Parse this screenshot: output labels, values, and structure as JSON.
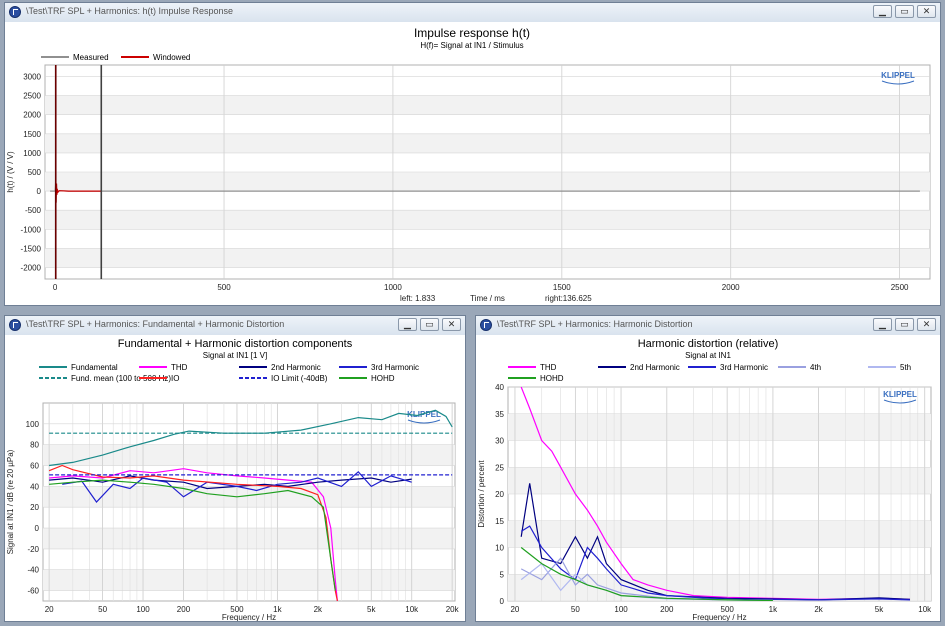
{
  "windows": {
    "top": {
      "title": "\\Test\\TRF SPL + Harmonics: h(t) Impulse Response"
    },
    "left": {
      "title": "\\Test\\TRF SPL + Harmonics: Fundamental + Harmonic Distortion"
    },
    "right": {
      "title": "\\Test\\TRF SPL + Harmonics: Harmonic Distortion"
    }
  },
  "logo_text": "KLIPPEL",
  "colors": {
    "measured": "#909090",
    "windowed": "#cc0000",
    "fundamental": "#1a8a8a",
    "thd": "#ff00ff",
    "h2": "#000080",
    "h3": "#2020d0",
    "im": "#ff2020",
    "hohd": "#20a020",
    "h4": "#9aa0e0",
    "h5": "#b0b8f0"
  },
  "chart_data": [
    {
      "type": "line",
      "title": "Impulse response h(t)",
      "subtitle": "H(f)= Signal at IN1 / Stimulus",
      "xlabel": "Time / ms",
      "ylabel": "h(t) / (V / V)",
      "xlim": [
        -30,
        2590
      ],
      "ylim": [
        -2300,
        3300
      ],
      "xticks": [
        0,
        500,
        1000,
        1500,
        2000,
        2500
      ],
      "yticks": [
        -2000,
        -1500,
        -1000,
        -500,
        0,
        500,
        1000,
        1500,
        2000,
        2500,
        3000
      ],
      "legend": [
        {
          "name": "Measured",
          "color": "#909090"
        },
        {
          "name": "Windowed",
          "color": "#cc0000"
        }
      ],
      "annotations": {
        "left": "left: 1.833",
        "right": "right:136.625"
      },
      "cursors_ms": [
        1.833,
        136.625
      ],
      "series": [
        {
          "name": "Measured",
          "points": [
            [
              -15,
              0
            ],
            [
              0,
              0
            ],
            [
              1,
              150
            ],
            [
              2,
              400
            ],
            [
              3,
              -300
            ],
            [
              4,
              200
            ],
            [
              5,
              -100
            ],
            [
              6,
              60
            ],
            [
              8,
              -30
            ],
            [
              12,
              10
            ],
            [
              40,
              0
            ],
            [
              2560,
              0
            ]
          ]
        },
        {
          "name": "Windowed",
          "points": [
            [
              1.833,
              0
            ],
            [
              2,
              400
            ],
            [
              3,
              -300
            ],
            [
              4,
              200
            ],
            [
              5,
              -100
            ],
            [
              6,
              60
            ],
            [
              8,
              -30
            ],
            [
              12,
              10
            ],
            [
              40,
              0
            ],
            [
              136.625,
              0
            ]
          ]
        }
      ]
    },
    {
      "type": "line",
      "title": "Fundamental + Harmonic distortion components",
      "subtitle": "Signal at IN1 [1 V]",
      "xlabel": "Frequency / Hz",
      "ylabel": "Signal at IN1 / dB (re 20 µPa)",
      "xscale": "log",
      "xlim": [
        18,
        21000
      ],
      "ylim": [
        -70,
        120
      ],
      "xticks": [
        {
          "v": 20,
          "l": "20"
        },
        {
          "v": 50,
          "l": "50"
        },
        {
          "v": 100,
          "l": "100"
        },
        {
          "v": 200,
          "l": "200"
        },
        {
          "v": 500,
          "l": "500"
        },
        {
          "v": 1000,
          "l": "1k"
        },
        {
          "v": 2000,
          "l": "2k"
        },
        {
          "v": 5000,
          "l": "5k"
        },
        {
          "v": 10000,
          "l": "10k"
        },
        {
          "v": 20000,
          "l": "20k"
        }
      ],
      "yticks": [
        -60,
        -40,
        -20,
        0,
        20,
        40,
        60,
        80,
        100
      ],
      "legend": [
        {
          "name": "Fundamental",
          "color": "#1a8a8a"
        },
        {
          "name": "THD",
          "color": "#ff00ff"
        },
        {
          "name": "2nd Harmonic",
          "color": "#000080"
        },
        {
          "name": "3rd Harmonic",
          "color": "#2020d0"
        },
        {
          "name": "Fund. mean (100 to 500 Hz)",
          "color": "#1a8a8a",
          "dash": true
        },
        {
          "name": "IO",
          "color": "#ff2020"
        },
        {
          "name": "IO Limit (-40dB)",
          "color": "#2020d0",
          "dash": true
        },
        {
          "name": "HOHD",
          "color": "#20a020"
        }
      ],
      "series": [
        {
          "name": "Fundamental",
          "points": [
            [
              20,
              60
            ],
            [
              30,
              63
            ],
            [
              50,
              70
            ],
            [
              80,
              78
            ],
            [
              120,
              84
            ],
            [
              170,
              90
            ],
            [
              220,
              93
            ],
            [
              400,
              91
            ],
            [
              800,
              91
            ],
            [
              1500,
              94
            ],
            [
              2500,
              100
            ],
            [
              4000,
              106
            ],
            [
              6000,
              104
            ],
            [
              8000,
              110
            ],
            [
              11000,
              108
            ],
            [
              15000,
              113
            ],
            [
              18000,
              107
            ],
            [
              20000,
              97
            ]
          ]
        },
        {
          "name": "Fund. mean (100 to 500 Hz)",
          "points": [
            [
              20,
              91
            ],
            [
              20000,
              91
            ]
          ]
        },
        {
          "name": "THD",
          "points": [
            [
              20,
              48
            ],
            [
              30,
              50
            ],
            [
              50,
              48
            ],
            [
              80,
              55
            ],
            [
              120,
              53
            ],
            [
              200,
              57
            ],
            [
              300,
              53
            ],
            [
              500,
              50
            ],
            [
              800,
              48
            ],
            [
              1200,
              46
            ],
            [
              1800,
              44
            ],
            [
              2200,
              30
            ],
            [
              2500,
              0
            ],
            [
              2700,
              -50
            ],
            [
              2800,
              -70
            ]
          ]
        },
        {
          "name": "2nd Harmonic",
          "points": [
            [
              20,
              46
            ],
            [
              30,
              48
            ],
            [
              50,
              44
            ],
            [
              80,
              50
            ],
            [
              120,
              46
            ],
            [
              200,
              44
            ],
            [
              300,
              38
            ],
            [
              500,
              40
            ],
            [
              800,
              42
            ],
            [
              1200,
              40
            ],
            [
              2000,
              44
            ],
            [
              3000,
              46
            ],
            [
              5000,
              48
            ],
            [
              7000,
              44
            ],
            [
              10000,
              47
            ]
          ]
        },
        {
          "name": "3rd Harmonic",
          "points": [
            [
              25,
              42
            ],
            [
              35,
              45
            ],
            [
              45,
              25
            ],
            [
              60,
              42
            ],
            [
              80,
              38
            ],
            [
              100,
              48
            ],
            [
              150,
              44
            ],
            [
              200,
              30
            ],
            [
              300,
              44
            ],
            [
              500,
              40
            ],
            [
              700,
              36
            ],
            [
              1000,
              42
            ],
            [
              1500,
              44
            ],
            [
              2000,
              48
            ],
            [
              3000,
              40
            ],
            [
              4000,
              54
            ],
            [
              5000,
              40
            ],
            [
              7000,
              50
            ],
            [
              10000,
              44
            ]
          ]
        },
        {
          "name": "IO",
          "points": [
            [
              20,
              55
            ],
            [
              25,
              60
            ],
            [
              30,
              56
            ],
            [
              50,
              49
            ],
            [
              80,
              48
            ],
            [
              120,
              50
            ],
            [
              200,
              46
            ],
            [
              500,
              42
            ],
            [
              1000,
              40
            ],
            [
              1500,
              38
            ],
            [
              2000,
              32
            ],
            [
              2300,
              10
            ],
            [
              2500,
              -30
            ],
            [
              2700,
              -60
            ],
            [
              2800,
              -70
            ]
          ]
        },
        {
          "name": "IO Limit (-40dB)",
          "points": [
            [
              20,
              51
            ],
            [
              20000,
              51
            ]
          ]
        },
        {
          "name": "HOHD",
          "points": [
            [
              20,
              42
            ],
            [
              30,
              44
            ],
            [
              50,
              46
            ],
            [
              80,
              44
            ],
            [
              120,
              42
            ],
            [
              200,
              38
            ],
            [
              300,
              33
            ],
            [
              500,
              30
            ],
            [
              800,
              33
            ],
            [
              1200,
              36
            ],
            [
              1800,
              30
            ],
            [
              2200,
              20
            ],
            [
              2500,
              -30
            ],
            [
              2700,
              -60
            ]
          ]
        }
      ]
    },
    {
      "type": "line",
      "title": "Harmonic distortion (relative)",
      "subtitle": "Signal at IN1",
      "xlabel": "Frequency / Hz",
      "ylabel": "Distortion / percent",
      "xscale": "log",
      "xlim": [
        18,
        11000
      ],
      "ylim": [
        0,
        40
      ],
      "xticks": [
        {
          "v": 20,
          "l": "20"
        },
        {
          "v": 50,
          "l": "50"
        },
        {
          "v": 100,
          "l": "100"
        },
        {
          "v": 200,
          "l": "200"
        },
        {
          "v": 500,
          "l": "500"
        },
        {
          "v": 1000,
          "l": "1k"
        },
        {
          "v": 2000,
          "l": "2k"
        },
        {
          "v": 5000,
          "l": "5k"
        },
        {
          "v": 10000,
          "l": "10k"
        }
      ],
      "yticks": [
        0,
        5,
        10,
        15,
        20,
        25,
        30,
        35,
        40
      ],
      "legend": [
        {
          "name": "THD",
          "color": "#ff00ff"
        },
        {
          "name": "2nd Harmonic",
          "color": "#000080"
        },
        {
          "name": "3rd Harmonic",
          "color": "#2020d0"
        },
        {
          "name": "4th",
          "color": "#9aa0e0"
        },
        {
          "name": "5th",
          "color": "#b0b8f0"
        },
        {
          "name": "HOHD",
          "color": "#20a020"
        }
      ],
      "series": [
        {
          "name": "THD",
          "points": [
            [
              22,
              40
            ],
            [
              25,
              36
            ],
            [
              30,
              30
            ],
            [
              35,
              28
            ],
            [
              40,
              25
            ],
            [
              50,
              20
            ],
            [
              60,
              17
            ],
            [
              70,
              14
            ],
            [
              80,
              11
            ],
            [
              100,
              7
            ],
            [
              120,
              4
            ],
            [
              150,
              3
            ],
            [
              200,
              2
            ],
            [
              300,
              1
            ],
            [
              500,
              0.7
            ],
            [
              1000,
              0.5
            ],
            [
              2000,
              0.3
            ],
            [
              5000,
              0.5
            ],
            [
              8000,
              0.3
            ]
          ]
        },
        {
          "name": "2nd Harmonic",
          "points": [
            [
              22,
              12
            ],
            [
              25,
              22
            ],
            [
              30,
              8
            ],
            [
              40,
              7
            ],
            [
              50,
              12
            ],
            [
              60,
              8
            ],
            [
              70,
              12
            ],
            [
              80,
              7
            ],
            [
              100,
              4
            ],
            [
              150,
              2
            ],
            [
              200,
              1
            ],
            [
              500,
              0.5
            ],
            [
              1000,
              0.4
            ],
            [
              2000,
              0.2
            ],
            [
              5000,
              0.6
            ],
            [
              8000,
              0.3
            ]
          ]
        },
        {
          "name": "3rd Harmonic",
          "points": [
            [
              22,
              13
            ],
            [
              25,
              14
            ],
            [
              30,
              10
            ],
            [
              40,
              6
            ],
            [
              50,
              4
            ],
            [
              60,
              10
            ],
            [
              70,
              8
            ],
            [
              80,
              6
            ],
            [
              100,
              3
            ],
            [
              150,
              1.5
            ],
            [
              200,
              1
            ],
            [
              500,
              0.3
            ],
            [
              1000,
              0.3
            ],
            [
              2000,
              0.2
            ],
            [
              5000,
              0.4
            ],
            [
              8000,
              0.2
            ]
          ]
        },
        {
          "name": "4th",
          "points": [
            [
              22,
              6
            ],
            [
              30,
              4
            ],
            [
              40,
              8
            ],
            [
              50,
              3
            ],
            [
              60,
              5
            ],
            [
              70,
              3
            ],
            [
              100,
              1.5
            ],
            [
              200,
              0.5
            ],
            [
              500,
              0.2
            ],
            [
              1000,
              0.1
            ]
          ]
        },
        {
          "name": "5th",
          "points": [
            [
              22,
              4
            ],
            [
              30,
              7
            ],
            [
              40,
              2
            ],
            [
              50,
              5
            ],
            [
              60,
              3
            ],
            [
              80,
              2
            ],
            [
              100,
              1
            ],
            [
              200,
              0.4
            ],
            [
              500,
              0.2
            ],
            [
              1000,
              0.1
            ]
          ]
        },
        {
          "name": "HOHD",
          "points": [
            [
              22,
              10
            ],
            [
              30,
              7
            ],
            [
              40,
              5
            ],
            [
              50,
              4
            ],
            [
              60,
              3
            ],
            [
              80,
              2
            ],
            [
              100,
              1
            ],
            [
              200,
              0.5
            ],
            [
              500,
              0.2
            ],
            [
              1000,
              0.1
            ]
          ]
        }
      ]
    }
  ]
}
